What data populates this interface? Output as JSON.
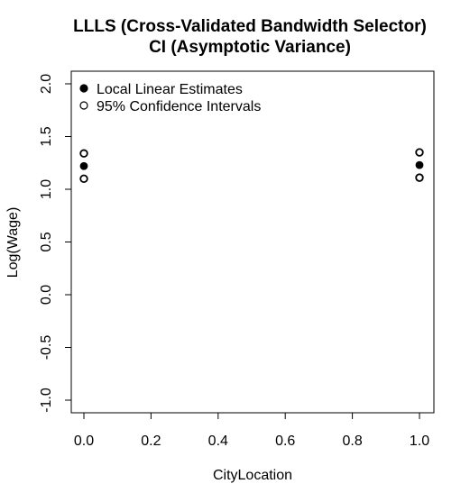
{
  "chart_data": {
    "type": "scatter",
    "title": "LLLS (Cross-Validated Bandwidth Selector)",
    "subtitle": "CI (Asymptotic Variance)",
    "xlabel": "CityLocation",
    "ylabel": "Log(Wage)",
    "xlim": [
      0.0,
      1.0
    ],
    "ylim": [
      -1.0,
      2.0
    ],
    "xticks": [
      "0.0",
      "0.2",
      "0.4",
      "0.6",
      "0.8",
      "1.0"
    ],
    "yticks": [
      "-1.0",
      "-0.5",
      "0.0",
      "0.5",
      "1.0",
      "1.5",
      "2.0"
    ],
    "series": [
      {
        "name": "Local Linear Estimates",
        "marker": "filled-circle",
        "x": [
          0.0,
          1.0
        ],
        "y": [
          1.22,
          1.23
        ]
      },
      {
        "name": "95% Confidence Intervals",
        "marker": "open-circle",
        "x": [
          0.0,
          0.0,
          1.0,
          1.0
        ],
        "y": [
          1.34,
          1.1,
          1.35,
          1.11
        ]
      }
    ],
    "legend_position": "top-left",
    "grid": false
  }
}
